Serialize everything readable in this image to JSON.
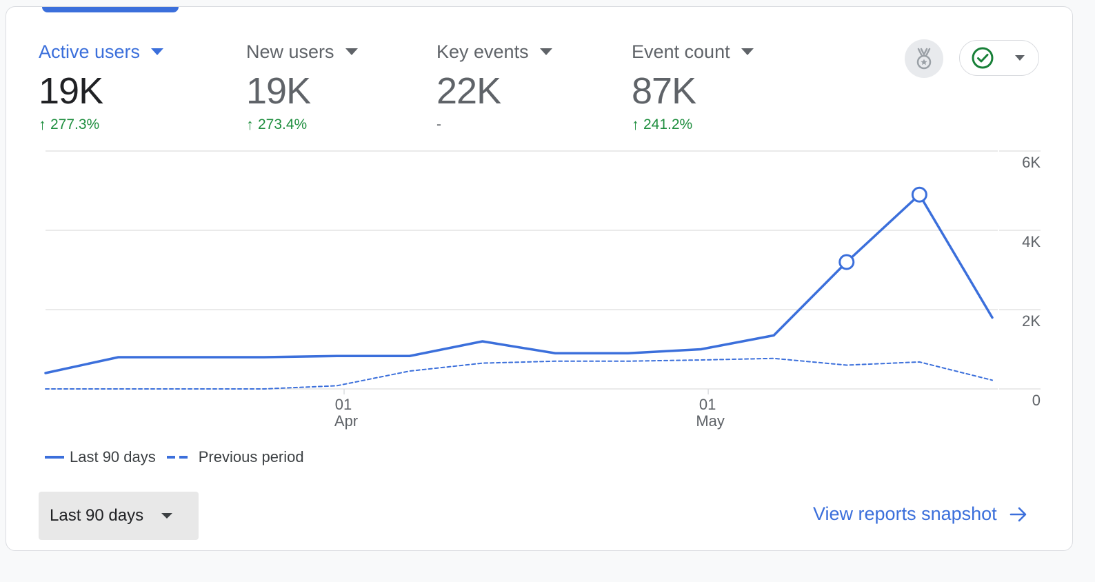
{
  "metrics": [
    {
      "label": "Active users",
      "value": "19K",
      "change": "277.3%",
      "direction": "up"
    },
    {
      "label": "New users",
      "value": "19K",
      "change": "273.4%",
      "direction": "up"
    },
    {
      "label": "Key events",
      "value": "22K",
      "change": "-",
      "direction": "none"
    },
    {
      "label": "Event count",
      "value": "87K",
      "change": "241.2%",
      "direction": "up"
    }
  ],
  "toolbar": {
    "award_icon": "award-medal-icon",
    "status_icon": "check-circle-icon"
  },
  "colors": {
    "accent": "#3b6fdb",
    "positive": "#1e8e3e",
    "muted": "#5f6368"
  },
  "chart_data": {
    "type": "line",
    "x": [
      "Mar 8",
      "Mar 14",
      "Mar 20",
      "Mar 26",
      "Apr 2",
      "Apr 8",
      "Apr 14",
      "Apr 20",
      "Apr 26",
      "May 2",
      "May 8",
      "May 14",
      "May 20",
      "May 26"
    ],
    "x_tick_labels": [
      {
        "day": "01",
        "month": "Apr",
        "index": 4.1
      },
      {
        "day": "01",
        "month": "May",
        "index": 9.1
      }
    ],
    "series": [
      {
        "name": "Last 90 days",
        "style": "solid",
        "values": [
          400,
          800,
          800,
          800,
          830,
          830,
          1200,
          900,
          900,
          1000,
          1350,
          3200,
          4900,
          1800
        ],
        "highlight_indices": [
          11,
          12
        ]
      },
      {
        "name": "Previous period",
        "style": "dashed",
        "values": [
          0,
          0,
          0,
          0,
          80,
          450,
          650,
          700,
          700,
          730,
          770,
          600,
          680,
          220
        ]
      }
    ],
    "yticks": [
      "0",
      "2K",
      "4K",
      "6K"
    ],
    "ylim": [
      0,
      6000
    ],
    "grid": true,
    "legend": "bottom-left"
  },
  "footer": {
    "range_label": "Last 90 days",
    "snapshot_link": "View reports snapshot"
  }
}
